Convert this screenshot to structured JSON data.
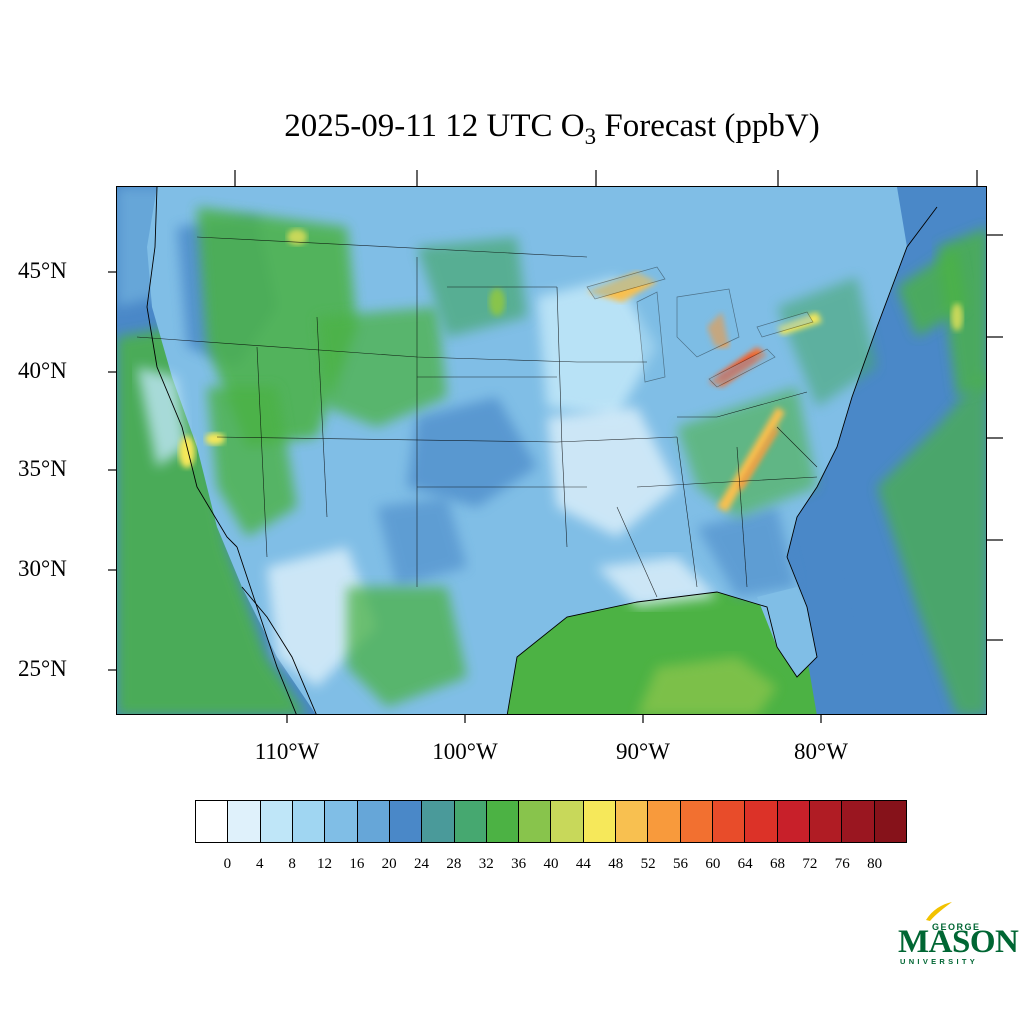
{
  "title": {
    "prefix": "2025-09-11 12 UTC O",
    "subscript": "3",
    "suffix": " Forecast (ppbV)"
  },
  "map": {
    "projection": "lambert-conformal",
    "lat_labels": [
      "45°N",
      "40°N",
      "35°N",
      "30°N",
      "25°N"
    ],
    "lon_labels": [
      "110°W",
      "100°W",
      "90°W",
      "80°W"
    ],
    "features": {
      "land_base_color": "#7abce4",
      "ocean_west_color": "#4a88c8",
      "ocean_gulf_color": "#4cb244",
      "ocean_atlantic_color": "#4a88c8",
      "high_ozone_regions": [
        "Lake Erie",
        "Lake Michigan",
        "Appalachians",
        "Southern Nevada"
      ]
    }
  },
  "colorbar": {
    "unit": "ppbV",
    "colors": [
      "#ffffff",
      "#dff1fb",
      "#bfe6f8",
      "#a0d6f2",
      "#80bee6",
      "#66a6d8",
      "#4a88c8",
      "#4a9a9a",
      "#46a870",
      "#4cb244",
      "#88c44c",
      "#c8d85a",
      "#f6e85a",
      "#f8c050",
      "#f89a3c",
      "#f27030",
      "#e84c2a",
      "#dc3228",
      "#c8202a",
      "#b01c24",
      "#9a1620",
      "#86121a"
    ],
    "labels": [
      "0",
      "4",
      "8",
      "12",
      "16",
      "20",
      "24",
      "28",
      "32",
      "36",
      "40",
      "44",
      "48",
      "52",
      "56",
      "60",
      "64",
      "68",
      "72",
      "76",
      "80"
    ]
  },
  "logo": {
    "line1": "GEORGE",
    "line2": "MASON",
    "line3": "UNIVERSITY",
    "color": "#006633",
    "accent": "#f2c200"
  }
}
